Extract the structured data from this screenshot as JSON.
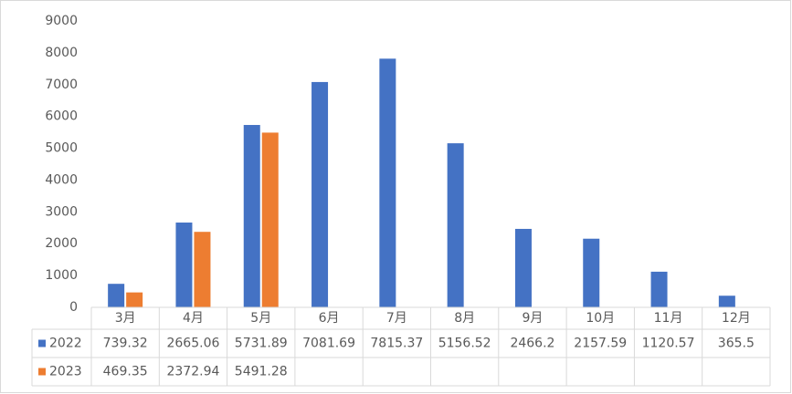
{
  "chart_data": {
    "type": "bar",
    "categories": [
      "3月",
      "4月",
      "5月",
      "6月",
      "7月",
      "8月",
      "9月",
      "10月",
      "11月",
      "12月"
    ],
    "series": [
      {
        "name": "2022",
        "color": "#4472c4",
        "values": [
          739.32,
          2665.06,
          5731.89,
          7081.69,
          7815.37,
          5156.52,
          2466.2,
          2157.59,
          1120.57,
          365.5
        ]
      },
      {
        "name": "2023",
        "color": "#ed7d31",
        "values": [
          469.35,
          2372.94,
          5491.28,
          null,
          null,
          null,
          null,
          null,
          null,
          null
        ]
      }
    ],
    "ylim": [
      0,
      9000
    ],
    "yticks": [
      0,
      1000,
      2000,
      3000,
      4000,
      5000,
      6000,
      7000,
      8000,
      9000
    ],
    "grid": false,
    "data_table": true
  }
}
